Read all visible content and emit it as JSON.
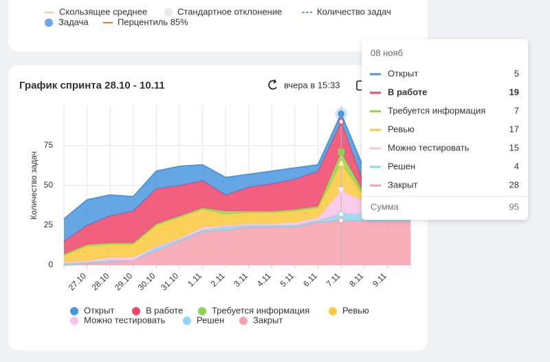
{
  "top_card": {
    "legend": [
      "Скользящее среднее",
      "Стандартное отклонение",
      "Количество задач",
      "Задача",
      "Перцентиль 85%"
    ]
  },
  "header": {
    "updated": "вчера в 15:33"
  },
  "chart_data": {
    "type": "stacked_area",
    "title": "График спринта 28.10 - 10.11",
    "y_label": "Количество задач",
    "categories": [
      null,
      "27.10",
      "28.10",
      "29.10",
      "30.10",
      "31.10",
      "1.11",
      "2.11",
      "3.11",
      "4.11",
      "5.11",
      "6.11",
      "7.11",
      "8.11",
      "9.11",
      null
    ],
    "series": [
      {
        "name": "Открыт",
        "color": "#4a96e0",
        "values": [
          14,
          16,
          13,
          9,
          11,
          12,
          10,
          11,
          8,
          8,
          7,
          4,
          5,
          10,
          8,
          8
        ]
      },
      {
        "name": "В работе",
        "color": "#f0446a",
        "values": [
          8,
          12,
          17,
          20,
          22,
          19,
          17,
          10,
          15,
          17,
          19,
          22,
          19,
          5,
          10,
          10
        ]
      },
      {
        "name": "Требуется информация",
        "color": "#8fd14f",
        "values": [
          1,
          1,
          1,
          1,
          1,
          1,
          1,
          2,
          1,
          1,
          1,
          1,
          7,
          2,
          2,
          2
        ]
      },
      {
        "name": "Ревью",
        "color": "#fbc93d",
        "values": [
          4,
          9,
          8,
          8,
          13,
          13,
          11,
          7,
          7,
          7,
          7,
          6,
          17,
          3,
          6,
          6
        ]
      },
      {
        "name": "Можно тестировать",
        "color": "#f8c3e6",
        "values": [
          1,
          1,
          2,
          2,
          1,
          1,
          2,
          1,
          1,
          1,
          2,
          2,
          15,
          8,
          1,
          1
        ]
      },
      {
        "name": "Решен",
        "color": "#8fd6ee",
        "values": [
          1,
          1,
          1,
          0,
          2,
          1,
          1,
          2,
          1,
          1,
          1,
          1,
          4,
          4,
          3,
          3
        ]
      },
      {
        "name": "Закрыт",
        "color": "#f7a1ae",
        "values": [
          0,
          1,
          2,
          3,
          9,
          15,
          21,
          22,
          24,
          24,
          24,
          27,
          28,
          28,
          28,
          28
        ]
      }
    ],
    "ylim": [
      0,
      100
    ],
    "yticks": [
      0,
      25,
      50,
      75
    ],
    "grid": true,
    "tooltip": {
      "title": "08 нояб",
      "index": 12,
      "sum_label": "Сумма",
      "sum_value": 95
    }
  }
}
